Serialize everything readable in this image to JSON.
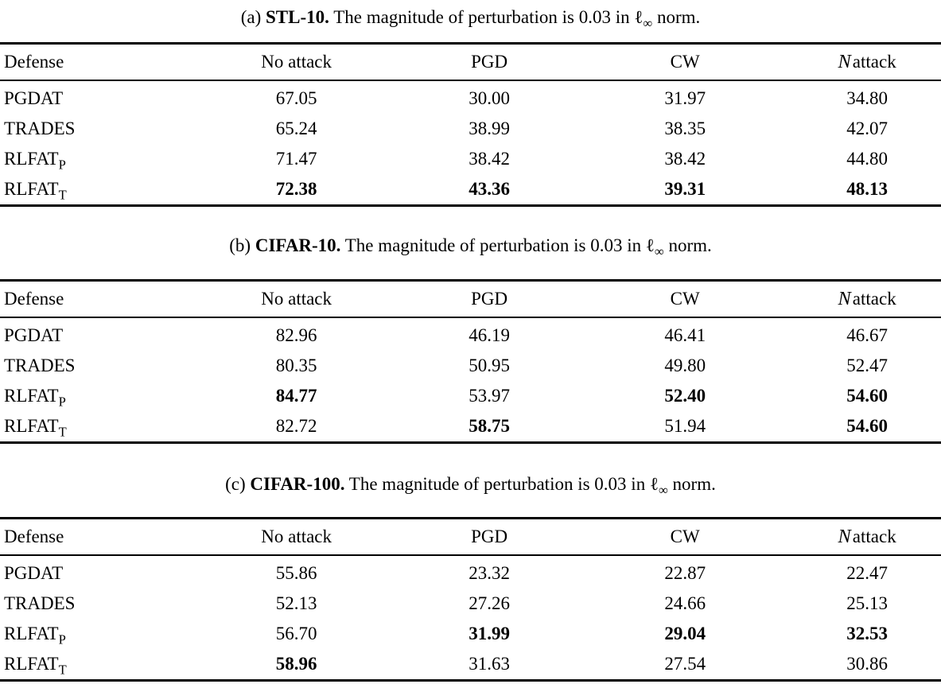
{
  "tables": [
    {
      "caption": {
        "prefix": "(a) ",
        "dataset": "STL-10.",
        "body_pre": " The magnitude of perturbation is 0.03 in ",
        "ell": "ℓ",
        "infinity": "∞",
        "body_post": " norm."
      },
      "columns": [
        {
          "label": "Defense"
        },
        {
          "label": "No attack"
        },
        {
          "label": "PGD"
        },
        {
          "label": "CW"
        },
        {
          "symbol": "N",
          "label": "attack",
          "full": "𝒩attack"
        }
      ],
      "rows": [
        {
          "label": "PGDAT",
          "sub": "",
          "values": [
            "67.05",
            "30.00",
            "31.97",
            "34.80"
          ],
          "bold": [
            false,
            false,
            false,
            false
          ]
        },
        {
          "label": "TRADES",
          "sub": "",
          "values": [
            "65.24",
            "38.99",
            "38.35",
            "42.07"
          ],
          "bold": [
            false,
            false,
            false,
            false
          ]
        },
        {
          "label": "RLFAT",
          "sub": "P",
          "values": [
            "71.47",
            "38.42",
            "38.42",
            "44.80"
          ],
          "bold": [
            false,
            false,
            false,
            false
          ]
        },
        {
          "label": "RLFAT",
          "sub": "T",
          "values": [
            "72.38",
            "43.36",
            "39.31",
            "48.13"
          ],
          "bold": [
            true,
            true,
            true,
            true
          ]
        }
      ]
    },
    {
      "caption": {
        "prefix": "(b) ",
        "dataset": "CIFAR-10.",
        "body_pre": " The magnitude of perturbation is 0.03 in ",
        "ell": "ℓ",
        "infinity": "∞",
        "body_post": " norm."
      },
      "columns": [
        {
          "label": "Defense"
        },
        {
          "label": "No attack"
        },
        {
          "label": "PGD"
        },
        {
          "label": "CW"
        },
        {
          "symbol": "N",
          "label": "attack",
          "full": "𝒩attack"
        }
      ],
      "rows": [
        {
          "label": "PGDAT",
          "sub": "",
          "values": [
            "82.96",
            "46.19",
            "46.41",
            "46.67"
          ],
          "bold": [
            false,
            false,
            false,
            false
          ]
        },
        {
          "label": "TRADES",
          "sub": "",
          "values": [
            "80.35",
            "50.95",
            "49.80",
            "52.47"
          ],
          "bold": [
            false,
            false,
            false,
            false
          ]
        },
        {
          "label": "RLFAT",
          "sub": "P",
          "values": [
            "84.77",
            "53.97",
            "52.40",
            "54.60"
          ],
          "bold": [
            true,
            false,
            true,
            true
          ]
        },
        {
          "label": "RLFAT",
          "sub": "T",
          "values": [
            "82.72",
            "58.75",
            "51.94",
            "54.60"
          ],
          "bold": [
            false,
            true,
            false,
            true
          ]
        }
      ]
    },
    {
      "caption": {
        "prefix": "(c) ",
        "dataset": "CIFAR-100.",
        "body_pre": " The magnitude of perturbation is 0.03 in ",
        "ell": "ℓ",
        "infinity": "∞",
        "body_post": " norm."
      },
      "columns": [
        {
          "label": "Defense"
        },
        {
          "label": "No attack"
        },
        {
          "label": "PGD"
        },
        {
          "label": "CW"
        },
        {
          "symbol": "N",
          "label": "attack",
          "full": "𝒩attack"
        }
      ],
      "rows": [
        {
          "label": "PGDAT",
          "sub": "",
          "values": [
            "55.86",
            "23.32",
            "22.87",
            "22.47"
          ],
          "bold": [
            false,
            false,
            false,
            false
          ]
        },
        {
          "label": "TRADES",
          "sub": "",
          "values": [
            "52.13",
            "27.26",
            "24.66",
            "25.13"
          ],
          "bold": [
            false,
            false,
            false,
            false
          ]
        },
        {
          "label": "RLFAT",
          "sub": "P",
          "values": [
            "56.70",
            "31.99",
            "29.04",
            "32.53"
          ],
          "bold": [
            false,
            true,
            true,
            true
          ]
        },
        {
          "label": "RLFAT",
          "sub": "T",
          "values": [
            "58.96",
            "31.63",
            "27.54",
            "30.86"
          ],
          "bold": [
            true,
            false,
            false,
            false
          ]
        }
      ]
    }
  ]
}
